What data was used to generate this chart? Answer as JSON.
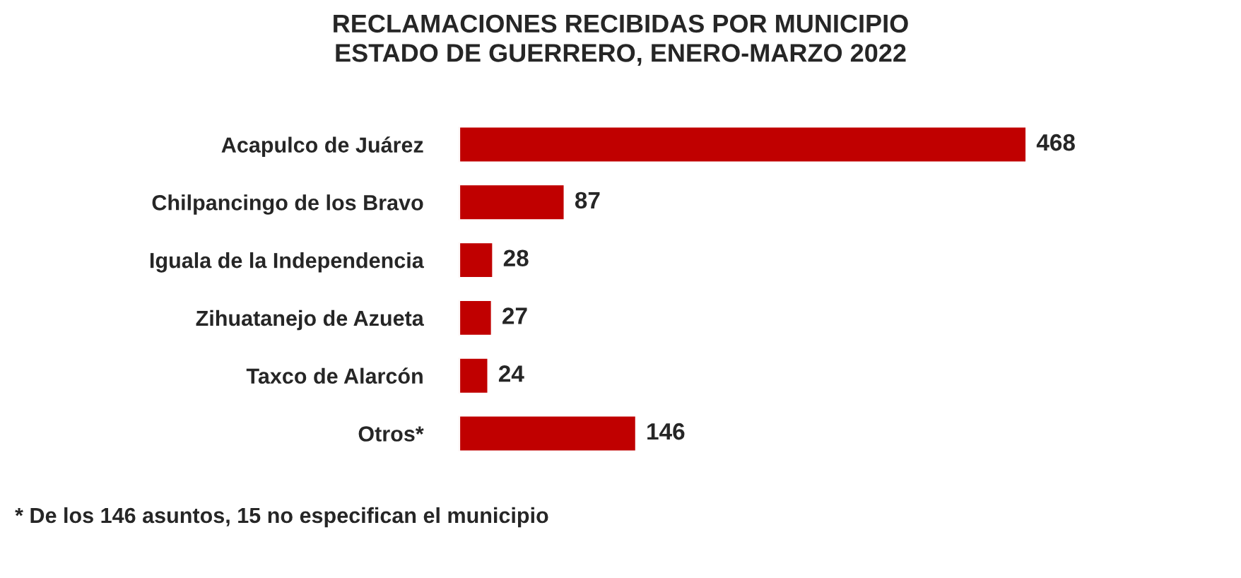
{
  "chart_data": {
    "type": "bar",
    "orientation": "horizontal",
    "title": "RECLAMACIONES RECIBIDAS POR MUNICIPIO\nESTADO DE GUERRERO, ENERO-MARZO 2022",
    "categories": [
      "Acapulco de Juárez",
      "Chilpancingo de los Bravo",
      "Iguala de la Independencia",
      "Zihuatanejo de Azueta",
      "Taxco de Alarcón",
      "Otros*"
    ],
    "values": [
      468,
      87,
      28,
      27,
      24,
      146
    ],
    "color": "#c00000",
    "data_labels": true,
    "annotations": [
      "* De los 146 asuntos, 15 no especifican el municipio"
    ]
  }
}
